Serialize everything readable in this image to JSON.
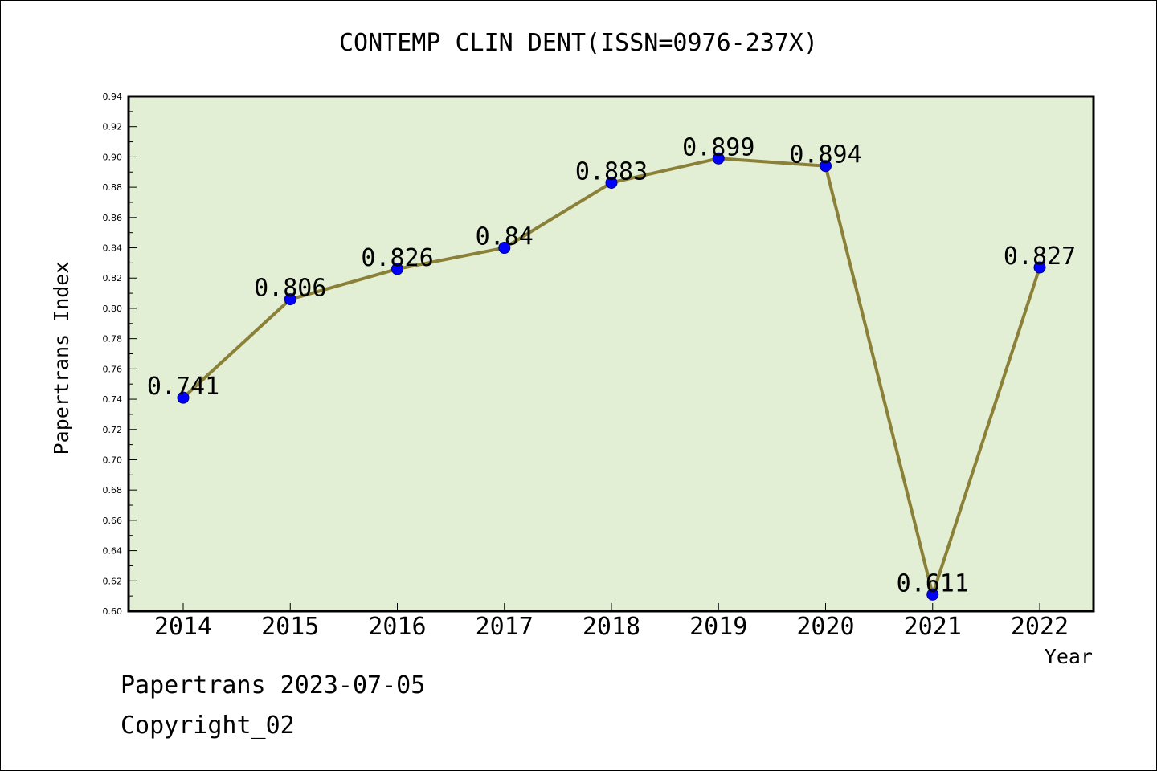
{
  "chart_data": {
    "type": "line",
    "title": "CONTEMP CLIN DENT(ISSN=0976-237X)",
    "xlabel": "Year",
    "ylabel": "Papertrans Index",
    "categories": [
      "2014",
      "2015",
      "2016",
      "2017",
      "2018",
      "2019",
      "2020",
      "2021",
      "2022"
    ],
    "values": [
      0.741,
      0.806,
      0.826,
      0.84,
      0.883,
      0.899,
      0.894,
      0.611,
      0.827
    ],
    "data_labels": [
      "0.741",
      "0.806",
      "0.826",
      "0.84",
      "0.883",
      "0.899",
      "0.894",
      "0.611",
      "0.827"
    ],
    "ylim": [
      0.6,
      0.94
    ],
    "yticks": [
      "0.60",
      "0.62",
      "0.64",
      "0.66",
      "0.68",
      "0.70",
      "0.72",
      "0.74",
      "0.76",
      "0.78",
      "0.80",
      "0.82",
      "0.84",
      "0.86",
      "0.88",
      "0.90",
      "0.92",
      "0.94"
    ],
    "grid": false,
    "colors": {
      "plot_background": "#e2efd5",
      "line": "#8b8038",
      "marker_fill": "#0000ff",
      "marker_edge": "#000080"
    }
  },
  "footer": {
    "line1": "Papertrans 2023-07-05",
    "line2": "Copyright_02"
  }
}
